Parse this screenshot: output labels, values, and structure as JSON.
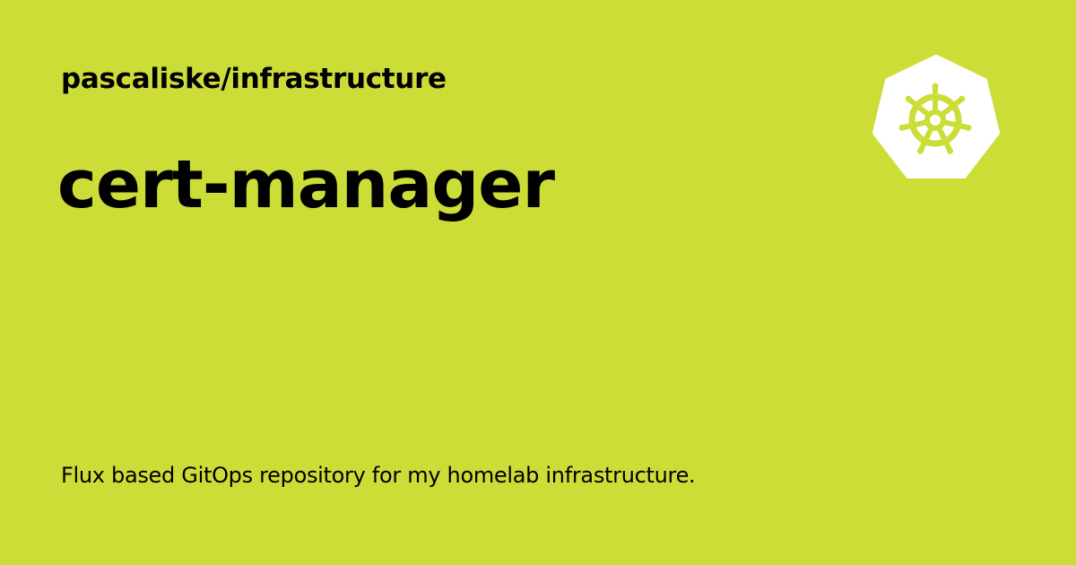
{
  "colors": {
    "background": "#cddd38",
    "text": "#000000",
    "logo_fill": "#ffffff",
    "logo_mark": "#cddd38"
  },
  "header": {
    "repository": "pascaliske/infrastructure"
  },
  "main": {
    "title": "cert-manager",
    "description": "Flux based GitOps repository for my homelab infrastructure."
  },
  "logo": {
    "icon": "kubernetes-helm-icon"
  }
}
